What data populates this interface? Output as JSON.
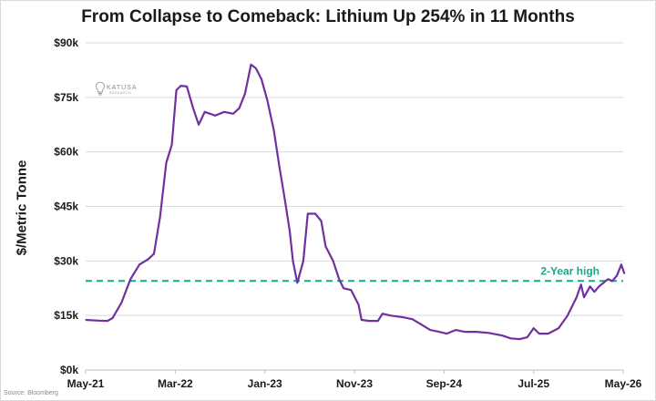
{
  "chart_data": {
    "type": "line",
    "title": "From Collapse to Comeback: Lithium Up 254% in 11 Months",
    "xlabel": "",
    "ylabel": "$/Metric Tonne",
    "source": "Source: Bloomberg",
    "logo": {
      "name": "KATUSA",
      "sub": "RESEARCH"
    },
    "x_ticks": [
      "May-21",
      "Mar-22",
      "Jan-23",
      "Nov-23",
      "Sep-24",
      "Jul-25",
      "May-26"
    ],
    "y_ticks": [
      "$0k",
      "$15k",
      "$30k",
      "$45k",
      "$60k",
      "$75k",
      "$90k"
    ],
    "ylim": [
      0,
      90000
    ],
    "xlim": [
      "2021-05",
      "2026-05"
    ],
    "grid": {
      "horizontal": true,
      "vertical": false
    },
    "colors": {
      "line": "#7030a0",
      "reference": "#1aa68a",
      "grid": "#d9d9d9"
    },
    "reference_line": {
      "label": "2-Year high",
      "value": 24500,
      "style": "dashed"
    },
    "series": [
      {
        "points": [
          [
            "2021-05-01",
            13800
          ],
          [
            "2021-06-15",
            13600
          ],
          [
            "2021-07-15",
            13500
          ],
          [
            "2021-08-01",
            14300
          ],
          [
            "2021-09-01",
            18500
          ],
          [
            "2021-10-01",
            25000
          ],
          [
            "2021-11-01",
            29000
          ],
          [
            "2021-12-01",
            30500
          ],
          [
            "2021-12-20",
            32000
          ],
          [
            "2022-01-10",
            42000
          ],
          [
            "2022-02-01",
            57000
          ],
          [
            "2022-02-20",
            62000
          ],
          [
            "2022-03-05",
            77000
          ],
          [
            "2022-03-20",
            78200
          ],
          [
            "2022-04-10",
            78000
          ],
          [
            "2022-05-01",
            72000
          ],
          [
            "2022-05-20",
            67500
          ],
          [
            "2022-06-10",
            71000
          ],
          [
            "2022-07-15",
            70000
          ],
          [
            "2022-08-15",
            71000
          ],
          [
            "2022-09-15",
            70500
          ],
          [
            "2022-10-05",
            72000
          ],
          [
            "2022-10-25",
            76000
          ],
          [
            "2022-11-15",
            84000
          ],
          [
            "2022-12-01",
            83000
          ],
          [
            "2022-12-20",
            80000
          ],
          [
            "2023-01-10",
            74000
          ],
          [
            "2023-02-01",
            66000
          ],
          [
            "2023-02-20",
            56000
          ],
          [
            "2023-03-10",
            46000
          ],
          [
            "2023-03-25",
            38000
          ],
          [
            "2023-04-05",
            30000
          ],
          [
            "2023-04-20",
            24000
          ],
          [
            "2023-05-10",
            30000
          ],
          [
            "2023-05-25",
            43000
          ],
          [
            "2023-06-20",
            43000
          ],
          [
            "2023-07-10",
            41000
          ],
          [
            "2023-07-25",
            34000
          ],
          [
            "2023-08-20",
            30000
          ],
          [
            "2023-09-10",
            25000
          ],
          [
            "2023-09-25",
            22500
          ],
          [
            "2023-10-20",
            22000
          ],
          [
            "2023-11-15",
            18000
          ],
          [
            "2023-11-25",
            13800
          ],
          [
            "2023-12-20",
            13500
          ],
          [
            "2024-01-20",
            13500
          ],
          [
            "2024-02-05",
            15500
          ],
          [
            "2024-03-01",
            15000
          ],
          [
            "2024-04-15",
            14500
          ],
          [
            "2024-05-15",
            14000
          ],
          [
            "2024-06-15",
            12500
          ],
          [
            "2024-07-15",
            11000
          ],
          [
            "2024-08-15",
            10500
          ],
          [
            "2024-09-10",
            10000
          ],
          [
            "2024-10-10",
            11000
          ],
          [
            "2024-11-10",
            10500
          ],
          [
            "2024-12-20",
            10500
          ],
          [
            "2025-02-01",
            10200
          ],
          [
            "2025-03-15",
            9500
          ],
          [
            "2025-04-15",
            8700
          ],
          [
            "2025-05-15",
            8500
          ],
          [
            "2025-06-10",
            9000
          ],
          [
            "2025-07-01",
            11500
          ],
          [
            "2025-07-20",
            10000
          ],
          [
            "2025-08-20",
            10000
          ],
          [
            "2025-09-25",
            11500
          ],
          [
            "2025-10-25",
            15000
          ],
          [
            "2025-11-25",
            20000
          ],
          [
            "2025-12-10",
            23500
          ],
          [
            "2025-12-20",
            20000
          ],
          [
            "2026-01-10",
            23000
          ],
          [
            "2026-01-25",
            21500
          ],
          [
            "2026-02-10",
            23000
          ],
          [
            "2026-03-10",
            25000
          ],
          [
            "2026-03-25",
            24500
          ],
          [
            "2026-04-10",
            26000
          ],
          [
            "2026-04-25",
            29000
          ],
          [
            "2026-05-05",
            26500
          ]
        ]
      }
    ]
  }
}
